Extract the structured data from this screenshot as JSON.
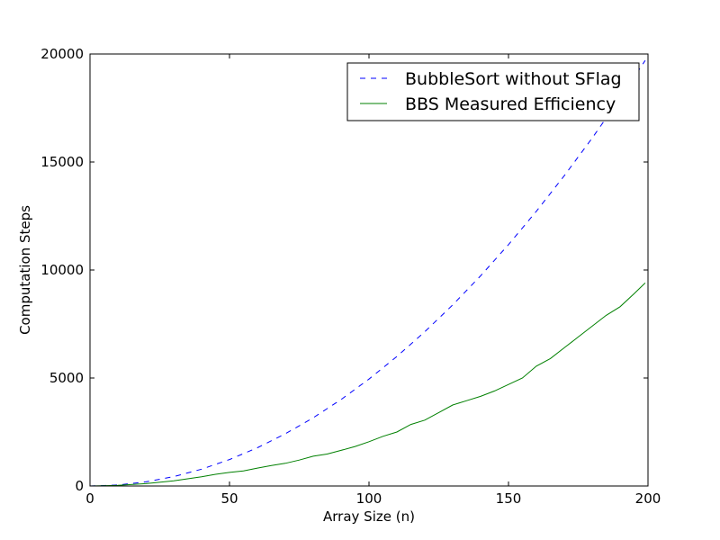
{
  "chart_data": {
    "type": "line",
    "title": "",
    "xlabel": "Array Size (n)",
    "ylabel": "Computation Steps",
    "xlim": [
      0,
      200
    ],
    "ylim": [
      0,
      20000
    ],
    "xticks": [
      0,
      50,
      100,
      150,
      200
    ],
    "yticks": [
      0,
      5000,
      10000,
      15000,
      20000
    ],
    "xtick_labels": [
      "0",
      "50",
      "100",
      "150",
      "200"
    ],
    "ytick_labels": [
      "0",
      "5000",
      "10000",
      "15000",
      "20000"
    ],
    "grid": false,
    "legend_position": "top-right",
    "series": [
      {
        "name": "BubbleSort without SFlag",
        "color": "#0000ff",
        "style": "dashed",
        "x": [
          0,
          10,
          20,
          30,
          40,
          50,
          60,
          70,
          80,
          90,
          100,
          110,
          120,
          130,
          140,
          150,
          160,
          170,
          180,
          190,
          199
        ],
        "y": [
          0,
          45,
          190,
          435,
          780,
          1225,
          1770,
          2415,
          3160,
          4005,
          4950,
          5995,
          7140,
          8385,
          9730,
          11175,
          12720,
          14365,
          16110,
          17955,
          19701
        ]
      },
      {
        "name": "BBS Measured Efficiency",
        "color": "#008000",
        "style": "solid",
        "x": [
          0,
          10,
          20,
          30,
          40,
          45,
          50,
          55,
          60,
          65,
          70,
          75,
          80,
          85,
          90,
          95,
          100,
          105,
          110,
          115,
          120,
          125,
          130,
          135,
          140,
          145,
          150,
          155,
          160,
          165,
          170,
          175,
          180,
          185,
          190,
          195,
          199
        ],
        "y": [
          0,
          30,
          110,
          240,
          430,
          540,
          630,
          700,
          830,
          950,
          1050,
          1200,
          1380,
          1480,
          1650,
          1830,
          2050,
          2300,
          2500,
          2850,
          3050,
          3400,
          3750,
          3950,
          4150,
          4400,
          4700,
          5000,
          5550,
          5900,
          6400,
          6900,
          7400,
          7900,
          8300,
          8900,
          9400
        ]
      }
    ]
  }
}
